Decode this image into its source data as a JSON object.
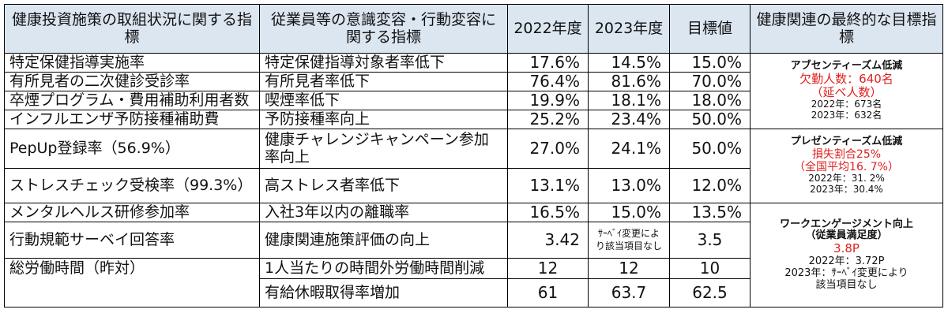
{
  "headers": {
    "col1": "健康投資施策の取組状況に関する指標",
    "col2": "従業員等の意識変容・行動変容に関する指標",
    "col3": "2022年度",
    "col4": "2023年度",
    "col5": "目標値",
    "col6": "健康関連の最終的な目標指標"
  },
  "rows": [
    {
      "measure": "特定保健指導実施率",
      "indicator": "特定保健指導対象者率低下",
      "y2022": "17.6%",
      "y2023": "14.5%",
      "target": "15.0%"
    },
    {
      "measure": "有所見者の二次健診受診率",
      "indicator": "有所見者率低下",
      "y2022": "76.4%",
      "y2023": "81.6%",
      "target": "70.0%"
    },
    {
      "measure": "卒煙プログラム・費用補助利用者数",
      "indicator": "喫煙率低下",
      "y2022": "19.9%",
      "y2023": "18.1%",
      "target": "18.0%"
    },
    {
      "measure": "インフルエンザ予防接種補助費",
      "indicator": "予防接種率向上",
      "y2022": "25.2%",
      "y2023": "23.4%",
      "target": "50.0%"
    },
    {
      "measure": "PepUp登録率（56.9%）",
      "indicator_line1": "健康チャレンジキャンペーン参加",
      "indicator_line2": "率向上",
      "y2022": "27.0%",
      "y2023": "24.1%",
      "target": "50.0%"
    },
    {
      "measure": "ストレスチェック受検率（99.3%）",
      "indicator": "高ストレス者率低下",
      "y2022": "13.1%",
      "y2023": "13.0%",
      "target": "12.0%"
    },
    {
      "measure": "メンタルヘルス研修参加率",
      "indicator": "入社3年以内の離職率",
      "y2022": "16.5%",
      "y2023": "15.0%",
      "target": "13.5%"
    },
    {
      "measure": "行動規範サーベイ回答率",
      "indicator": "健康関連施策評価の向上",
      "y2022": "3.42",
      "y2023_line1": "ｻｰﾍﾞｲ変更によ",
      "y2023_line2": "り該当項目なし",
      "target": "3.5"
    },
    {
      "measure": "総労働時間（昨対）",
      "indicator": "1人当たりの時間外労働時間削減",
      "y2022": "12",
      "y2023": "12",
      "target": "10"
    },
    {
      "indicator": "有給休暇取得率増加",
      "y2022": "61",
      "y2023": "63.7",
      "target": "62.5"
    }
  ],
  "final": {
    "absenteeism": {
      "title": "アブセンティーズム低減",
      "value": "欠勤人数：640名",
      "note": "（延べ人数）",
      "y2022": "2022年：673名",
      "y2023": "2023年：632名"
    },
    "presenteeism": {
      "title": "プレゼンティーズム低減",
      "value": "損失割合25%",
      "note": "（全国平均16. 7%）",
      "y2022": "2022年：31. 2%",
      "y2023": "2023年：30.4%"
    },
    "engagement": {
      "title": "ワークエンゲージメント向上",
      "subtitle": "（従業員満足度）",
      "value": "3.8P",
      "y2022": "2022年：3.72P",
      "y2023_line1": "2023年：ｻｰﾍﾞｲ変更により",
      "y2023_line2": "該当項目なし"
    }
  },
  "colors": {
    "header_bg": "#dce6f1",
    "accent_red": "#e02020",
    "border": "#000000"
  }
}
